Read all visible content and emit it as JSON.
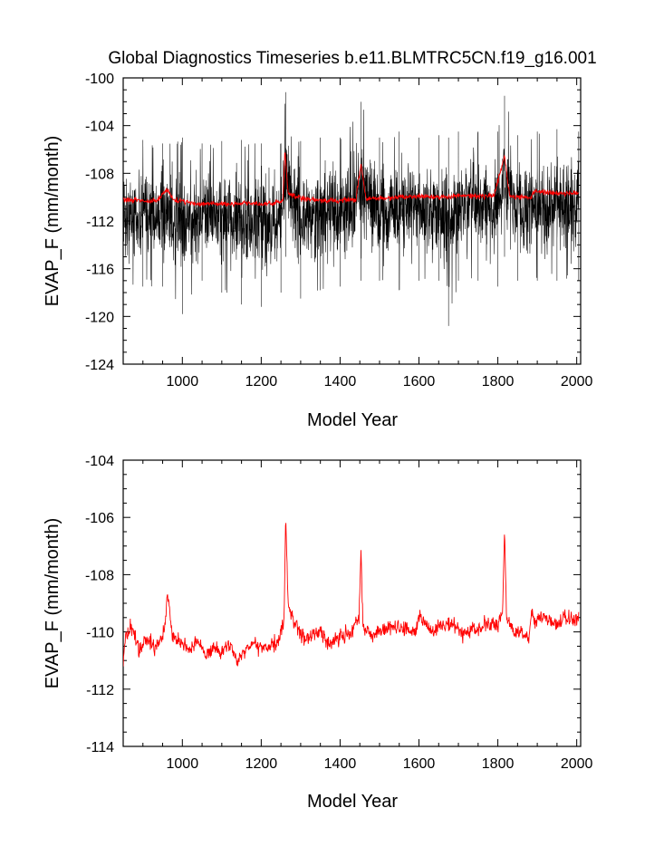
{
  "title": "Global Diagnostics Timeseries b.e11.BLMTRC5CN.f19_g16.001",
  "colors": {
    "monthly": "#000000",
    "annual": "#ff0000",
    "frame": "#000000"
  },
  "chart_data": [
    {
      "type": "line",
      "panel": "top",
      "title": "Global Diagnostics Timeseries b.e11.BLMTRC5CN.f19_g16.001",
      "xlabel": "Model Year",
      "ylabel": "EVAP_F (mm/month)",
      "xlim": [
        850,
        2010
      ],
      "ylim": [
        -124,
        -100
      ],
      "xticks": [
        1000,
        1200,
        1400,
        1600,
        1800,
        2000
      ],
      "xtick_labels": [
        "1000",
        "1200",
        "1400",
        "1600",
        "1800",
        "2000"
      ],
      "yticks": [
        -124,
        -120,
        -116,
        -112,
        -108,
        -104,
        -100
      ],
      "ytick_labels": [
        "-124",
        "-120",
        "-116",
        "-112",
        "-108",
        "-104",
        "-100"
      ],
      "series": [
        {
          "name": "monthly",
          "color": "#000000",
          "description": "dense monthly timeseries, spread roughly -116 to -105 around the annual mean",
          "x": [
            850,
            900,
            950,
            1000,
            1050,
            1100,
            1150,
            1200,
            1250,
            1262,
            1300,
            1350,
            1400,
            1453,
            1500,
            1550,
            1600,
            1650,
            1675,
            1700,
            1750,
            1800,
            1817,
            1850,
            1900,
            1950,
            2005
          ],
          "min": [
            -118.0,
            -117.5,
            -117.5,
            -119.8,
            -117.0,
            -118.0,
            -119.0,
            -119.2,
            -118.0,
            -115.0,
            -118.5,
            -117.8,
            -117.5,
            -117.0,
            -117.0,
            -117.8,
            -117.0,
            -117.0,
            -120.8,
            -117.0,
            -117.0,
            -117.5,
            -115.0,
            -117.0,
            -117.0,
            -117.0,
            -117.0
          ],
          "max": [
            -105.5,
            -105.2,
            -105.5,
            -105.0,
            -105.5,
            -105.3,
            -105.2,
            -105.5,
            -105.5,
            -101.2,
            -105.3,
            -105.0,
            -105.0,
            -102.0,
            -105.0,
            -104.5,
            -105.0,
            -104.8,
            -105.0,
            -104.5,
            -104.5,
            -104.5,
            -101.5,
            -104.8,
            -104.5,
            -104.3,
            -104.5
          ]
        },
        {
          "name": "annual",
          "color": "#ff0000",
          "x": [
            850,
            880,
            910,
            940,
            960,
            980,
            1000,
            1040,
            1080,
            1120,
            1160,
            1200,
            1230,
            1255,
            1260,
            1268,
            1285,
            1320,
            1360,
            1400,
            1440,
            1453,
            1465,
            1500,
            1550,
            1600,
            1650,
            1700,
            1750,
            1790,
            1817,
            1830,
            1860,
            1885,
            1890,
            1920,
            1950,
            1980,
            2005
          ],
          "values": [
            -110.3,
            -110.2,
            -110.4,
            -110.2,
            -109.3,
            -110.3,
            -110.3,
            -110.6,
            -110.5,
            -110.6,
            -110.5,
            -110.6,
            -110.5,
            -110.3,
            -106.0,
            -109.6,
            -110.0,
            -110.2,
            -110.3,
            -110.3,
            -110.2,
            -107.2,
            -110.1,
            -110.1,
            -110.0,
            -109.9,
            -110.0,
            -109.9,
            -109.9,
            -109.9,
            -106.5,
            -109.9,
            -110.0,
            -110.0,
            -109.5,
            -109.6,
            -109.7,
            -109.7,
            -109.6
          ]
        }
      ]
    },
    {
      "type": "line",
      "panel": "bottom",
      "xlabel": "Model Year",
      "ylabel": "EVAP_F (mm/month)",
      "xlim": [
        850,
        2010
      ],
      "ylim": [
        -114,
        -104
      ],
      "xticks": [
        1000,
        1200,
        1400,
        1600,
        1800,
        2000
      ],
      "xtick_labels": [
        "1000",
        "1200",
        "1400",
        "1600",
        "1800",
        "2000"
      ],
      "yticks": [
        -114,
        -112,
        -110,
        -108,
        -106,
        -104
      ],
      "ytick_labels": [
        "-114",
        "-112",
        "-110",
        "-108",
        "-106",
        "-104"
      ],
      "series": [
        {
          "name": "annual",
          "color": "#ff0000",
          "x": [
            850,
            855,
            870,
            890,
            910,
            930,
            950,
            958,
            962,
            975,
            1000,
            1020,
            1040,
            1060,
            1080,
            1100,
            1120,
            1140,
            1160,
            1180,
            1200,
            1220,
            1240,
            1250,
            1258,
            1262,
            1268,
            1275,
            1290,
            1310,
            1330,
            1350,
            1370,
            1400,
            1430,
            1448,
            1453,
            1458,
            1480,
            1500,
            1530,
            1560,
            1590,
            1600,
            1630,
            1660,
            1690,
            1720,
            1750,
            1780,
            1800,
            1812,
            1817,
            1822,
            1840,
            1860,
            1878,
            1886,
            1895,
            1910,
            1930,
            1950,
            1970,
            1990,
            2005
          ],
          "values": [
            -111.0,
            -110.2,
            -109.8,
            -110.6,
            -110.3,
            -110.5,
            -110.2,
            -109.5,
            -108.6,
            -110.2,
            -110.4,
            -110.7,
            -110.3,
            -110.9,
            -110.5,
            -110.7,
            -110.4,
            -111.0,
            -110.6,
            -110.4,
            -110.6,
            -110.5,
            -110.4,
            -110.0,
            -109.6,
            -105.9,
            -109.0,
            -109.4,
            -109.8,
            -110.2,
            -110.1,
            -110.0,
            -110.4,
            -110.2,
            -110.0,
            -109.5,
            -107.1,
            -109.8,
            -110.1,
            -110.0,
            -109.8,
            -109.9,
            -110.0,
            -109.4,
            -110.0,
            -109.7,
            -109.8,
            -110.1,
            -109.9,
            -109.7,
            -109.8,
            -109.3,
            -106.4,
            -109.5,
            -110.0,
            -110.0,
            -110.2,
            -109.3,
            -109.6,
            -109.4,
            -109.6,
            -109.7,
            -109.5,
            -109.6,
            -109.5
          ]
        }
      ]
    }
  ]
}
